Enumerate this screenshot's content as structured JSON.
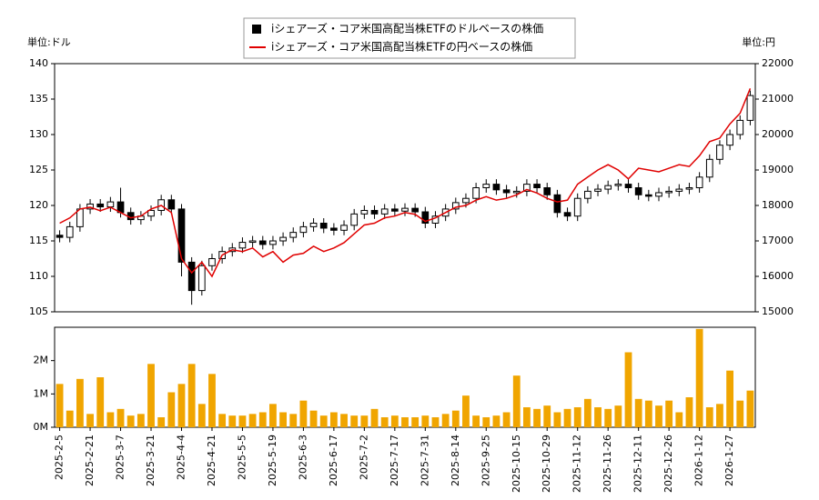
{
  "chart_data": [
    {
      "type": "candlestick",
      "y_label": "単位:ドル",
      "y2_label": "単位:円",
      "ylim": [
        105,
        140
      ],
      "yticks": [
        105,
        110,
        115,
        120,
        125,
        130,
        135,
        140
      ],
      "y2lim": [
        15000,
        22000
      ],
      "y2ticks": [
        15000,
        16000,
        17000,
        18000,
        19000,
        20000,
        21000,
        22000
      ],
      "series": [
        {
          "name": "iシェアーズ・コア米国高配当株ETFのドルベースの株価",
          "color": "#000000",
          "type": "candlestick",
          "open": [
            115.8,
            115.5,
            117,
            119.5,
            120.2,
            119.8,
            120.5,
            119,
            118,
            118.5,
            119.3,
            120.8,
            119.5,
            112,
            108,
            111.5,
            112.5,
            113.5,
            114,
            114.8,
            115,
            114.5,
            115,
            115.5,
            116.2,
            117,
            117.5,
            116.8,
            116.5,
            117.2,
            118.8,
            119.3,
            118.8,
            119.5,
            119.2,
            119.6,
            119.1,
            117.5,
            118.5,
            119.5,
            120.4,
            121,
            122.5,
            123,
            122.2,
            121.8,
            122,
            123,
            122.5,
            121.5,
            119,
            118.5,
            121,
            122,
            122.3,
            122.8,
            123,
            122.5,
            121.5,
            121.3,
            121.8,
            122,
            122.3,
            122.5,
            124,
            126.5,
            128.5,
            130,
            132
          ],
          "high": [
            116.5,
            117.7,
            120.2,
            120.9,
            120.9,
            121.2,
            122.5,
            119.7,
            119.2,
            120,
            121.5,
            121.5,
            120.2,
            112.7,
            112.2,
            113.2,
            114.2,
            114.7,
            115.5,
            115.7,
            115.7,
            115.7,
            116.2,
            116.9,
            117.7,
            118.2,
            118.2,
            117.5,
            117.9,
            119.5,
            120,
            120,
            120.2,
            120.2,
            120.3,
            120.3,
            119.8,
            119.2,
            120.2,
            121.1,
            121.7,
            123.2,
            123.7,
            123.7,
            122.9,
            122.7,
            123.7,
            123.7,
            123.2,
            122.2,
            119.7,
            121.7,
            122.7,
            123,
            123.5,
            123.7,
            123.7,
            123.2,
            122.2,
            122.5,
            122.7,
            123,
            123.2,
            124.7,
            127.2,
            129.2,
            130.7,
            132.7,
            136.2
          ],
          "low": [
            114.8,
            114.8,
            116.3,
            118.8,
            119.1,
            119.1,
            118.3,
            117.3,
            117.3,
            117.8,
            118.6,
            118.8,
            110,
            106,
            107.3,
            110.8,
            111.8,
            112.8,
            113.3,
            114.1,
            113.8,
            113.8,
            114.3,
            114.8,
            115.5,
            116.3,
            116.1,
            115.8,
            115.8,
            116.5,
            118.1,
            118.1,
            118.1,
            118.5,
            118.5,
            118.4,
            116.8,
            116.8,
            117.8,
            118.8,
            119.7,
            120.3,
            121.8,
            121.5,
            121.1,
            121.1,
            121.3,
            121.8,
            120.8,
            118.3,
            117.8,
            117.8,
            120.3,
            121.3,
            121.6,
            122.1,
            121.8,
            120.8,
            120.6,
            120.6,
            121.1,
            121.3,
            121.6,
            121.8,
            123.3,
            125.8,
            127.8,
            129.3,
            131.3
          ],
          "close": [
            115.5,
            117,
            119.5,
            120.2,
            119.8,
            120.5,
            119,
            118,
            118.5,
            119.3,
            120.8,
            119.5,
            112,
            108,
            111.5,
            112.5,
            113.5,
            114,
            114.8,
            115,
            114.5,
            115,
            115.5,
            116.2,
            117,
            117.5,
            116.8,
            116.5,
            117.2,
            118.8,
            119.3,
            118.8,
            119.5,
            119.2,
            119.6,
            119.1,
            117.5,
            118.5,
            119.5,
            120.4,
            121,
            122.5,
            123,
            122.2,
            121.8,
            122,
            123,
            122.5,
            121.5,
            119,
            118.5,
            121,
            122,
            122.3,
            122.8,
            123,
            122.5,
            121.5,
            121.3,
            121.8,
            122,
            122.3,
            122.5,
            124,
            126.5,
            128.5,
            130,
            132,
            135.5
          ]
        },
        {
          "name": "iシェアーズ・コア米国高配当株ETFの円ベースの株価",
          "color": "#e00000",
          "type": "line",
          "axis": "y2",
          "values": [
            17500,
            17650,
            17900,
            17950,
            17850,
            17950,
            17800,
            17650,
            17700,
            17900,
            18000,
            17800,
            16500,
            16100,
            16400,
            16000,
            16600,
            16750,
            16700,
            16800,
            16550,
            16700,
            16400,
            16600,
            16650,
            16850,
            16700,
            16800,
            16950,
            17200,
            17450,
            17500,
            17650,
            17700,
            17800,
            17750,
            17550,
            17650,
            17800,
            17950,
            18000,
            18150,
            18250,
            18150,
            18200,
            18300,
            18450,
            18350,
            18200,
            18100,
            18150,
            18600,
            18800,
            19000,
            19150,
            19000,
            18750,
            19050,
            19000,
            18950,
            19050,
            19150,
            19100,
            19400,
            19800,
            19900,
            20300,
            20600,
            21300
          ]
        }
      ]
    },
    {
      "type": "bar",
      "color": "#f0a500",
      "categories": [
        "2025-2-5",
        null,
        null,
        "2025-2-21",
        null,
        null,
        "2025-3-7",
        null,
        null,
        "2025-3-21",
        null,
        null,
        "2025-4-4",
        null,
        null,
        "2025-4-21",
        null,
        null,
        "2025-5-5",
        null,
        null,
        "2025-5-19",
        null,
        null,
        "2025-6-3",
        null,
        null,
        "2025-6-17",
        null,
        null,
        "2025-7-2",
        null,
        null,
        "2025-7-17",
        null,
        null,
        "2025-7-31",
        null,
        null,
        "2025-8-14",
        null,
        null,
        "2025-9-25",
        null,
        null,
        "2025-10-15",
        null,
        null,
        "2025-10-29",
        null,
        null,
        "2025-11-12",
        null,
        null,
        "2025-11-26",
        null,
        null,
        "2025-12-11",
        null,
        null,
        "2025-12-26",
        null,
        null,
        "2026-1-12",
        null,
        null,
        "2026-1-27",
        null,
        null
      ],
      "values": [
        1300000,
        500000,
        1450000,
        400000,
        1500000,
        450000,
        550000,
        350000,
        400000,
        1900000,
        300000,
        1050000,
        1300000,
        1900000,
        700000,
        1600000,
        400000,
        350000,
        350000,
        400000,
        450000,
        700000,
        450000,
        400000,
        800000,
        500000,
        350000,
        450000,
        400000,
        350000,
        350000,
        550000,
        300000,
        350000,
        300000,
        300000,
        350000,
        300000,
        400000,
        500000,
        950000,
        350000,
        300000,
        350000,
        450000,
        1550000,
        600000,
        550000,
        650000,
        450000,
        550000,
        600000,
        850000,
        600000,
        550000,
        650000,
        2250000,
        850000,
        800000,
        650000,
        800000,
        450000,
        900000,
        2950000,
        600000,
        700000,
        1700000,
        800000,
        1100000
      ],
      "ylim": [
        0,
        3000000
      ],
      "yticks": [
        {
          "value": 0,
          "label": "0M"
        },
        {
          "value": 1000000,
          "label": "1M"
        },
        {
          "value": 2000000,
          "label": "2M"
        }
      ]
    }
  ]
}
